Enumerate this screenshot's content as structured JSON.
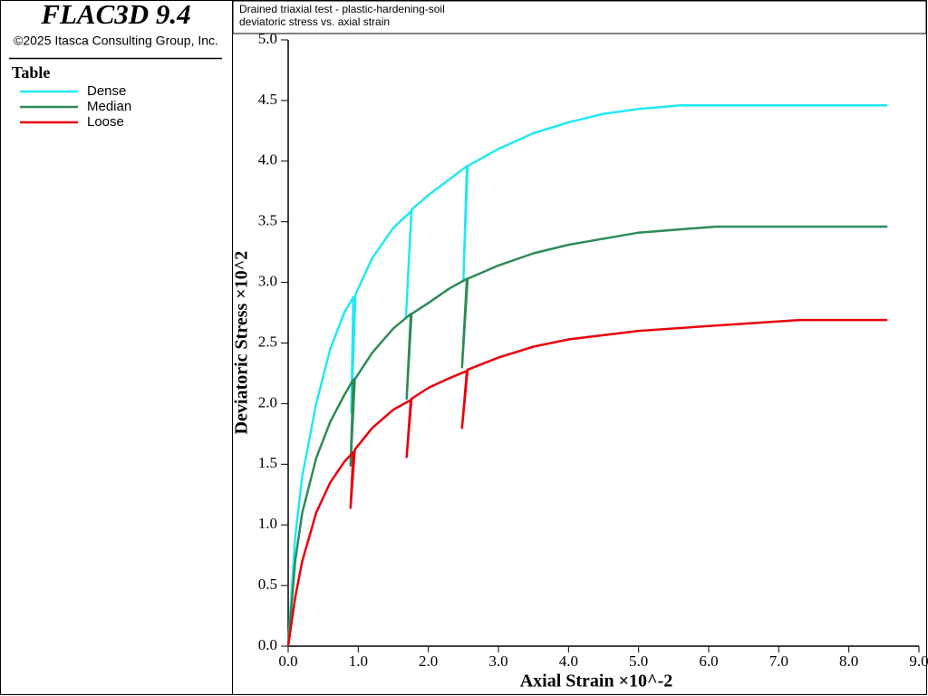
{
  "header": {
    "product": "FLAC3D 9.4",
    "copyright": "©2025 Itasca Consulting Group, Inc."
  },
  "chart_data": {
    "type": "line",
    "title": "Drained triaxial test - plastic-hardening-soil",
    "subtitle": "deviatoric stress vs. axial strain",
    "legend_title": "Table",
    "x_label": "Axial Strain ×10^-2",
    "y_label": "Deviatoric Stress ×10^2",
    "xlim": [
      0,
      9
    ],
    "ylim": [
      0,
      5
    ],
    "xticks": [
      {
        "value": 0,
        "label": "0.0"
      },
      {
        "value": 1,
        "label": "1.0"
      },
      {
        "value": 2,
        "label": "2.0"
      },
      {
        "value": 3,
        "label": "3.0"
      },
      {
        "value": 4,
        "label": "4.0"
      },
      {
        "value": 5,
        "label": "5.0"
      },
      {
        "value": 6,
        "label": "6.0"
      },
      {
        "value": 7,
        "label": "7.0"
      },
      {
        "value": 8,
        "label": "8.0"
      },
      {
        "value": 9,
        "label": "9.0"
      }
    ],
    "yticks": [
      {
        "value": 0,
        "label": "0.0"
      },
      0.5,
      {
        "value": 1,
        "label": "1.0"
      },
      1.5,
      {
        "value": 2,
        "label": "2.0"
      },
      2.5,
      {
        "value": 3,
        "label": "3.0"
      },
      3.5,
      {
        "value": 4,
        "label": "4.0"
      },
      4.5,
      {
        "value": 5,
        "label": "5.0"
      }
    ],
    "series": [
      {
        "name": "Dense",
        "color": "#22e8f2",
        "x": [
          0,
          0.1,
          0.2,
          0.4,
          0.6,
          0.8,
          0.93,
          0.9,
          0.96,
          1.2,
          1.5,
          1.76,
          1.68,
          1.76,
          2.0,
          2.3,
          2.55,
          2.5,
          2.56,
          3.0,
          3.5,
          4.0,
          4.5,
          5.0,
          5.6,
          8.55
        ],
        "values": [
          0,
          0.9,
          1.4,
          2.0,
          2.45,
          2.75,
          2.88,
          1.93,
          2.9,
          3.2,
          3.45,
          3.59,
          2.71,
          3.6,
          3.72,
          3.85,
          3.96,
          3.01,
          3.96,
          4.1,
          4.23,
          4.32,
          4.39,
          4.43,
          4.46,
          4.46
        ]
      },
      {
        "name": "Median",
        "color": "#2e8b57",
        "x": [
          0,
          0.1,
          0.2,
          0.4,
          0.6,
          0.8,
          0.93,
          0.89,
          0.95,
          1.2,
          1.5,
          1.75,
          1.69,
          1.76,
          2.0,
          2.3,
          2.55,
          2.48,
          2.56,
          3.0,
          3.5,
          4.0,
          5.0,
          6.1,
          8.55
        ],
        "values": [
          0,
          0.7,
          1.1,
          1.55,
          1.85,
          2.07,
          2.2,
          1.49,
          2.2,
          2.42,
          2.62,
          2.74,
          2.04,
          2.74,
          2.83,
          2.95,
          3.03,
          2.3,
          3.03,
          3.14,
          3.24,
          3.31,
          3.41,
          3.46,
          3.46
        ]
      },
      {
        "name": "Loose",
        "color": "#e8000b",
        "x": [
          0,
          0.1,
          0.2,
          0.4,
          0.6,
          0.8,
          0.93,
          0.89,
          0.95,
          1.2,
          1.5,
          1.75,
          1.69,
          1.76,
          2.0,
          2.3,
          2.55,
          2.48,
          2.56,
          3.0,
          3.5,
          4.0,
          5.0,
          6.0,
          7.3,
          8.55
        ],
        "values": [
          0,
          0.4,
          0.7,
          1.1,
          1.35,
          1.52,
          1.6,
          1.14,
          1.62,
          1.8,
          1.95,
          2.03,
          1.56,
          2.04,
          2.13,
          2.21,
          2.27,
          1.8,
          2.28,
          2.38,
          2.47,
          2.53,
          2.6,
          2.64,
          2.69,
          2.69
        ]
      }
    ]
  }
}
